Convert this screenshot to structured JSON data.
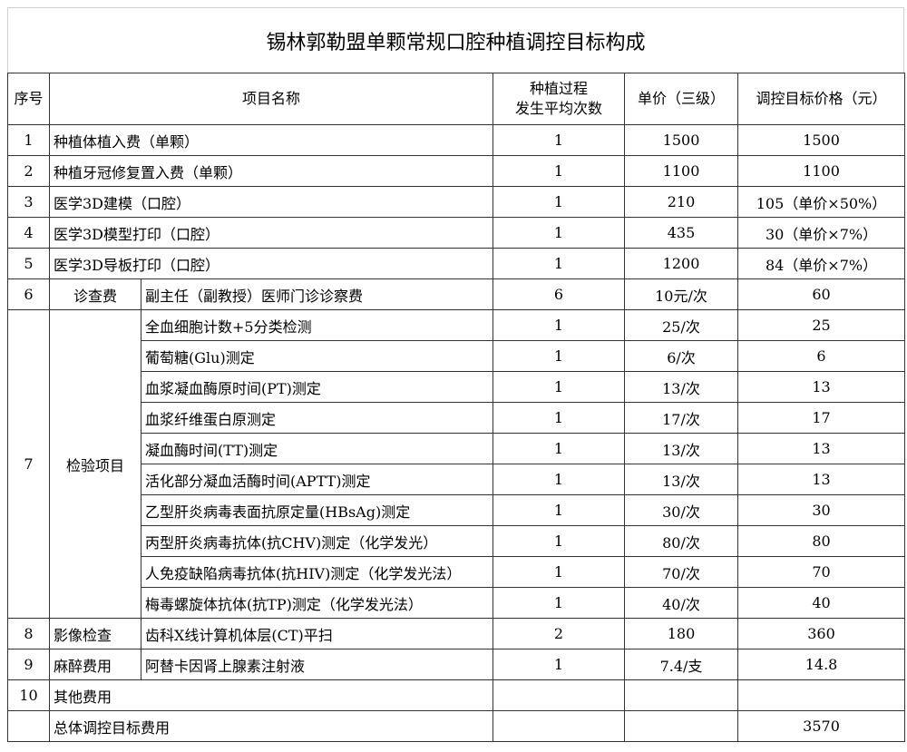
{
  "title": "锡林郭勒盟单颗常规口腔种植调控目标构成",
  "headers": {
    "no": "序号",
    "name": "项目名称",
    "times_l1": "种植过程",
    "times_l2": "发生平均次数",
    "price": "单价（三级）",
    "target": "调控目标价格（元）"
  },
  "rows": [
    {
      "no": "1",
      "name": "种植体植入费（单颗）",
      "times": "1",
      "price": "1500",
      "target": "1500"
    },
    {
      "no": "2",
      "name": "种植牙冠修复置入费（单颗）",
      "times": "1",
      "price": "1100",
      "target": "1100"
    },
    {
      "no": "3",
      "name": "医学3D建模（口腔）",
      "times": "1",
      "price": "210",
      "target": "105（单价×50%）"
    },
    {
      "no": "4",
      "name": "医学3D模型打印（口腔）",
      "times": "1",
      "price": "435",
      "target": "30（单价×7%）"
    },
    {
      "no": "5",
      "name": "医学3D导板打印（口腔）",
      "times": "1",
      "price": "1200",
      "target": "84（单价×7%）"
    }
  ],
  "row6": {
    "no": "6",
    "category": "诊查费",
    "name": "副主任（副教授）医师门诊诊察费",
    "times": "6",
    "price": "10元/次",
    "target": "60"
  },
  "row7": {
    "no": "7",
    "category": "检验项目",
    "items": [
      {
        "name": "全血细胞计数+5分类检测",
        "times": "1",
        "price": "25/次",
        "target": "25"
      },
      {
        "name": "葡萄糖(Glu)测定",
        "times": "1",
        "price": "6/次",
        "target": "6"
      },
      {
        "name": "血浆凝血酶原时间(PT)测定",
        "times": "1",
        "price": "13/次",
        "target": "13"
      },
      {
        "name": "血浆纤维蛋白原测定",
        "times": "1",
        "price": "17/次",
        "target": "17"
      },
      {
        "name": "凝血酶时间(TT)测定",
        "times": "1",
        "price": "13/次",
        "target": "13"
      },
      {
        "name": "活化部分凝血活酶时间(APTT)测定",
        "times": "1",
        "price": "13/次",
        "target": "13"
      },
      {
        "name": "乙型肝炎病毒表面抗原定量(HBsAg)测定",
        "times": "1",
        "price": "30/次",
        "target": "30"
      },
      {
        "name": "丙型肝炎病毒抗体(抗CHV)测定（化学发光）",
        "times": "1",
        "price": "80/次",
        "target": "80"
      },
      {
        "name": "人免疫缺陷病毒抗体(抗HIV)测定（化学发光法）",
        "times": "1",
        "price": "70/次",
        "target": "70"
      },
      {
        "name": "梅毒螺旋体抗体(抗TP)测定（化学发光法）",
        "times": "1",
        "price": "40/次",
        "target": "40"
      }
    ]
  },
  "row8": {
    "no": "8",
    "category": "影像检查",
    "name": "齿科X线计算机体层(CT)平扫",
    "times": "2",
    "price": "180",
    "target": "360"
  },
  "row9": {
    "no": "9",
    "category": "麻醉费用",
    "name": "阿替卡因肾上腺素注射液",
    "times": "1",
    "price": "7.4/支",
    "target": "14.8"
  },
  "row10": {
    "no": "10",
    "category": "其他费用"
  },
  "total": {
    "label": "总体调控目标费用",
    "target": "3570"
  }
}
